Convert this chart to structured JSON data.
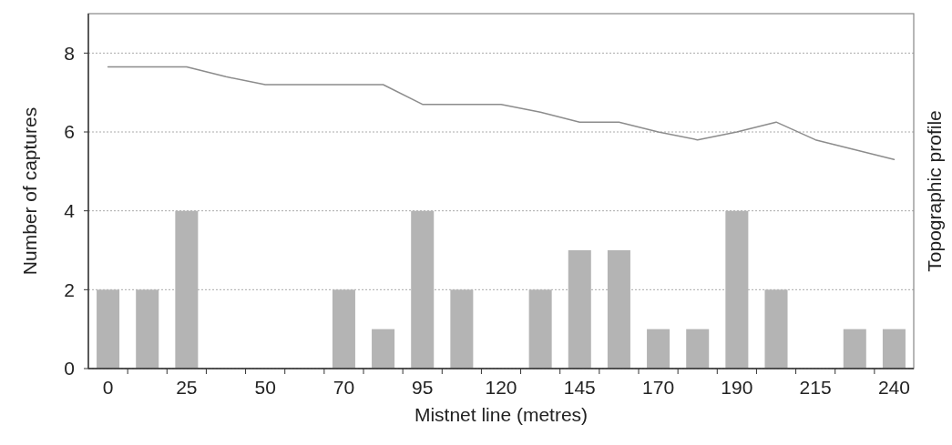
{
  "chart_data": {
    "type": "bar",
    "xlabel": "Mistnet line (metres)",
    "ylabel": "Number of captures",
    "y2label": "Topographic profile",
    "categories": [
      "0",
      null,
      "25",
      null,
      "50",
      null,
      "70",
      null,
      "95",
      null,
      "120",
      null,
      "145",
      null,
      "170",
      null,
      "190",
      null,
      "215",
      null,
      "240"
    ],
    "series": [
      {
        "color": "#b4b4b4",
        "values": [
          2,
          2,
          4,
          0,
          0,
          0,
          2,
          1,
          4,
          2,
          0,
          2,
          3,
          3,
          1,
          1,
          4,
          2,
          0,
          1,
          1
        ]
      },
      {
        "type": "line",
        "color": "#8c8c8c",
        "values": [
          7.65,
          7.65,
          7.65,
          7.4,
          7.2,
          7.2,
          7.2,
          7.2,
          6.7,
          6.7,
          6.7,
          6.5,
          6.25,
          6.25,
          6.0,
          5.8,
          6.0,
          6.25,
          5.8,
          5.55,
          5.3
        ]
      }
    ],
    "ylim": [
      0,
      9
    ],
    "yticks": [
      0,
      2,
      4,
      6,
      8
    ],
    "grid": "y",
    "marker": "none",
    "line_style": "solid"
  }
}
